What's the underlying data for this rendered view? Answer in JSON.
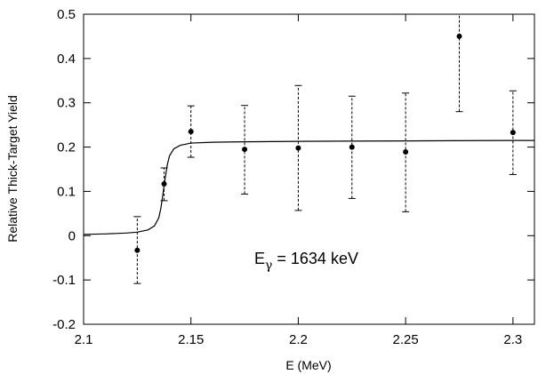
{
  "chart_data": {
    "type": "scatter",
    "title": "",
    "xlabel": "E (MeV)",
    "ylabel": "Relative Thick-Target Yield",
    "xlim": [
      2.1,
      2.31
    ],
    "ylim": [
      -0.2,
      0.5
    ],
    "xticks": [
      "2.1",
      "2.15",
      "2.2",
      "2.25",
      "2.3"
    ],
    "yticks": [
      "-0.2",
      "-0.1",
      "0",
      "0.1",
      "0.2",
      "0.3",
      "0.4",
      "0.5"
    ],
    "grid": false,
    "annotation": {
      "main": "E",
      "subscript": "γ",
      "rest": " = 1634 keV"
    },
    "points": [
      {
        "x": 2.125,
        "y": -0.033,
        "lo": -0.108,
        "hi": 0.043
      },
      {
        "x": 2.1375,
        "y": 0.117,
        "lo": 0.079,
        "hi": 0.153
      },
      {
        "x": 2.15,
        "y": 0.235,
        "lo": 0.177,
        "hi": 0.293
      },
      {
        "x": 2.175,
        "y": 0.195,
        "lo": 0.094,
        "hi": 0.294
      },
      {
        "x": 2.2,
        "y": 0.198,
        "lo": 0.057,
        "hi": 0.339
      },
      {
        "x": 2.225,
        "y": 0.2,
        "lo": 0.084,
        "hi": 0.315
      },
      {
        "x": 2.25,
        "y": 0.189,
        "lo": 0.054,
        "hi": 0.322
      },
      {
        "x": 2.275,
        "y": 0.45,
        "lo": 0.28,
        "hi": 0.5
      },
      {
        "x": 2.3,
        "y": 0.233,
        "lo": 0.138,
        "hi": 0.327
      }
    ],
    "fit_curve": {
      "x": [
        2.1,
        2.11,
        2.12,
        2.125,
        2.13,
        2.133,
        2.135,
        2.136,
        2.137,
        2.138,
        2.139,
        2.14,
        2.142,
        2.145,
        2.15,
        2.16,
        2.175,
        2.2,
        2.25,
        2.3,
        2.31
      ],
      "y": [
        0.003,
        0.004,
        0.006,
        0.008,
        0.013,
        0.022,
        0.04,
        0.062,
        0.095,
        0.13,
        0.16,
        0.18,
        0.196,
        0.204,
        0.209,
        0.211,
        0.212,
        0.213,
        0.214,
        0.215,
        0.215
      ]
    }
  }
}
